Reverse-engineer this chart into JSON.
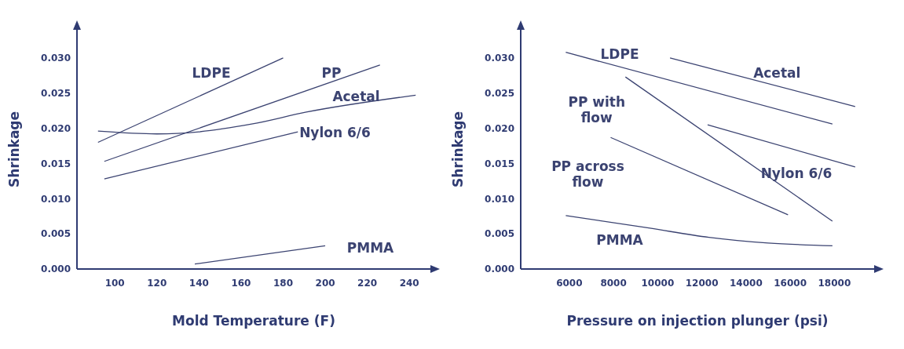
{
  "chart_data": [
    {
      "type": "line",
      "xlabel": "Mold Temperature (F)",
      "ylabel": "Shrinkage",
      "xlim": [
        82,
        250
      ],
      "ylim": [
        0,
        0.034
      ],
      "xticks": [
        100,
        120,
        140,
        160,
        180,
        200,
        220,
        240
      ],
      "yticks": [
        {
          "value": 0,
          "label": "0.000"
        },
        {
          "value": 0.005,
          "label": "0.005"
        },
        {
          "value": 0.01,
          "label": "0.010"
        },
        {
          "value": 0.015,
          "label": "0.015"
        },
        {
          "value": 0.02,
          "label": "0.020"
        },
        {
          "value": 0.025,
          "label": "0.025"
        },
        {
          "value": 0.03,
          "label": "0.030"
        }
      ],
      "grid": false,
      "legend": false,
      "series": [
        {
          "name": "LDPE",
          "color": "#3b4371",
          "x": [
            92,
            180
          ],
          "values": [
            0.018,
            0.03
          ]
        },
        {
          "name": "PP",
          "color": "#3b4371",
          "x": [
            95,
            226
          ],
          "values": [
            0.0153,
            0.029
          ]
        },
        {
          "name": "Acetal",
          "color": "#3b4371",
          "x": [
            92,
            120,
            140,
            165,
            191,
            243
          ],
          "values": [
            0.0196,
            0.0192,
            0.0195,
            0.0206,
            0.0223,
            0.0247
          ]
        },
        {
          "name": "Nylon 6/6",
          "color": "#3b4371",
          "x": [
            95,
            187
          ],
          "values": [
            0.0128,
            0.0195
          ]
        },
        {
          "name": "PMMA",
          "color": "#3b4371",
          "x": [
            138,
            200
          ],
          "values": [
            0.0007,
            0.0033
          ]
        }
      ]
    },
    {
      "type": "line",
      "xlabel": "Pressure on injection plunger (psi)",
      "ylabel": "Shrinkage",
      "xlim": [
        3800,
        19800
      ],
      "ylim": [
        0,
        0.034
      ],
      "xticks": [
        6000,
        8000,
        10000,
        12000,
        14000,
        16000,
        18000
      ],
      "yticks": [
        {
          "value": 0,
          "label": "0.000"
        },
        {
          "value": 0.005,
          "label": "0.005"
        },
        {
          "value": 0.01,
          "label": "0.010"
        },
        {
          "value": 0.015,
          "label": "0.015"
        },
        {
          "value": 0.02,
          "label": "0.020"
        },
        {
          "value": 0.025,
          "label": "0.025"
        },
        {
          "value": 0.03,
          "label": "0.030"
        }
      ],
      "grid": false,
      "legend": false,
      "series": [
        {
          "name": "LDPE",
          "color": "#3b4371",
          "x": [
            5840,
            17910
          ],
          "values": [
            0.0308,
            0.0206
          ]
        },
        {
          "name": "Acetal",
          "color": "#3b4371",
          "x": [
            10560,
            18940
          ],
          "values": [
            0.03,
            0.0231
          ]
        },
        {
          "name": "PP with flow",
          "color": "#3b4371",
          "x": [
            8540,
            17910
          ],
          "values": [
            0.0273,
            0.0068
          ]
        },
        {
          "name": "Nylon 6/6",
          "color": "#3b4371",
          "x": [
            12260,
            18940
          ],
          "values": [
            0.0205,
            0.0145
          ]
        },
        {
          "name": "PP across flow",
          "color": "#3b4371",
          "x": [
            7870,
            15900
          ],
          "values": [
            0.0187,
            0.0077
          ]
        },
        {
          "name": "PMMA",
          "color": "#3b4371",
          "x": [
            5840,
            9650,
            12320,
            15000,
            17910
          ],
          "values": [
            0.0076,
            0.0058,
            0.0045,
            0.0037,
            0.0033
          ]
        }
      ]
    }
  ]
}
